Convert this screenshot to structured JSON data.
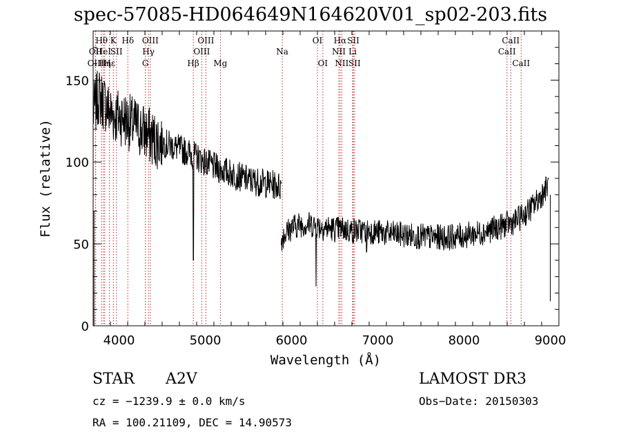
{
  "chart_data": {
    "type": "line",
    "title": "spec-57085-HD064649N164620V01_sp02-203.fits",
    "xlabel": "Wavelength (Å)",
    "ylabel": "Flux (relative)",
    "xlim": [
      3700,
      9100
    ],
    "ylim": [
      0,
      180
    ],
    "xticks": [
      4000,
      5000,
      6000,
      7000,
      8000,
      9000
    ],
    "yticks": [
      0,
      50,
      100,
      150
    ],
    "series": [
      {
        "name": "spectrum",
        "segments": [
          {
            "x": [
              3700,
              3730,
              3760,
              3800,
              3850,
              3900,
              3950,
              4000,
              4050,
              4100,
              4150,
              4200,
              4250,
              4300,
              4350,
              4400,
              4500,
              4600,
              4700,
              4800,
              4900,
              5000,
              5100,
              5200,
              5300,
              5400,
              5500,
              5600,
              5700,
              5800,
              5880
            ],
            "y": [
              130,
              135,
              140,
              138,
              135,
              130,
              128,
              128,
              127,
              125,
              123,
              122,
              120,
              118,
              116,
              114,
              112,
              110,
              108,
              106,
              103,
              100,
              97,
              95,
              93,
              91,
              89,
              88,
              87,
              86,
              85
            ]
          },
          {
            "x": [
              5880,
              5900,
              6000,
              6100,
              6200,
              6300,
              6400,
              6500,
              6600,
              6700,
              6800,
              6900,
              7000,
              7200,
              7400,
              7600,
              7800,
              8000,
              8200,
              8400,
              8600,
              8700,
              8800,
              8900,
              8980
            ],
            "y": [
              52,
              55,
              60,
              62,
              62,
              61,
              60,
              59,
              59,
              58,
              58,
              58,
              57,
              56,
              55,
              54,
              54,
              55,
              57,
              60,
              64,
              68,
              73,
              80,
              86
            ]
          }
        ],
        "noise_amplitude": 9
      }
    ],
    "features": [
      {
        "x": 4862,
        "y": 40
      },
      {
        "x": 6284,
        "y": 24
      },
      {
        "x": 6870,
        "y": 45
      }
    ],
    "lines": [
      {
        "label": "Hθ",
        "wave": 3798,
        "row": 1
      },
      {
        "label": "OII",
        "wave": 3727,
        "row": 2
      },
      {
        "label": "OIII",
        "wave": 3729,
        "row": 3
      },
      {
        "label": "HeI",
        "wave": 3820,
        "row": 2
      },
      {
        "label": "Hη",
        "wave": 3835,
        "row": 3
      },
      {
        "label": "K",
        "wave": 3934,
        "row": 1
      },
      {
        "label": "SII",
        "wave": 3970,
        "row": 2
      },
      {
        "label": "Hε",
        "wave": 3889,
        "row": 3
      },
      {
        "label": "Hδ",
        "wave": 4102,
        "row": 1
      },
      {
        "label": "OIII",
        "wave": 4363,
        "row": 1
      },
      {
        "label": "Hγ",
        "wave": 4341,
        "row": 2
      },
      {
        "label": "G",
        "wave": 4305,
        "row": 3
      },
      {
        "label": "Hβ",
        "wave": 4861,
        "row": 3
      },
      {
        "label": "OIII",
        "wave": 5007,
        "row": 1
      },
      {
        "label": "OIII",
        "wave": 4959,
        "row": 2
      },
      {
        "label": "Mg",
        "wave": 5175,
        "row": 3
      },
      {
        "label": "Na",
        "wave": 5893,
        "row": 2
      },
      {
        "label": "OI",
        "wave": 6300,
        "row": 1
      },
      {
        "label": "OI",
        "wave": 6363,
        "row": 3
      },
      {
        "label": "Hα",
        "wave": 6563,
        "row": 1
      },
      {
        "label": "SII",
        "wave": 6716,
        "row": 1
      },
      {
        "label": "NII",
        "wave": 6548,
        "row": 2
      },
      {
        "label": "Li",
        "wave": 6708,
        "row": 2
      },
      {
        "label": "NII",
        "wave": 6583,
        "row": 3
      },
      {
        "label": "SII",
        "wave": 6731,
        "row": 3
      },
      {
        "label": "CaII",
        "wave": 8542,
        "row": 1
      },
      {
        "label": "CaII",
        "wave": 8498,
        "row": 2
      },
      {
        "label": "CaII",
        "wave": 8662,
        "row": 3
      }
    ],
    "colors": {
      "line": "#000000",
      "marker": "#b22222",
      "axes": "#000000"
    }
  },
  "info": {
    "object_class": "STAR",
    "subclass": "A2V",
    "survey": "LAMOST DR3",
    "cz": "cz = −1239.9 ± 0.0 km/s",
    "obs_date": "Obs−Date: 20150303",
    "coords": "RA = 100.21109, DEC =  14.90573"
  }
}
